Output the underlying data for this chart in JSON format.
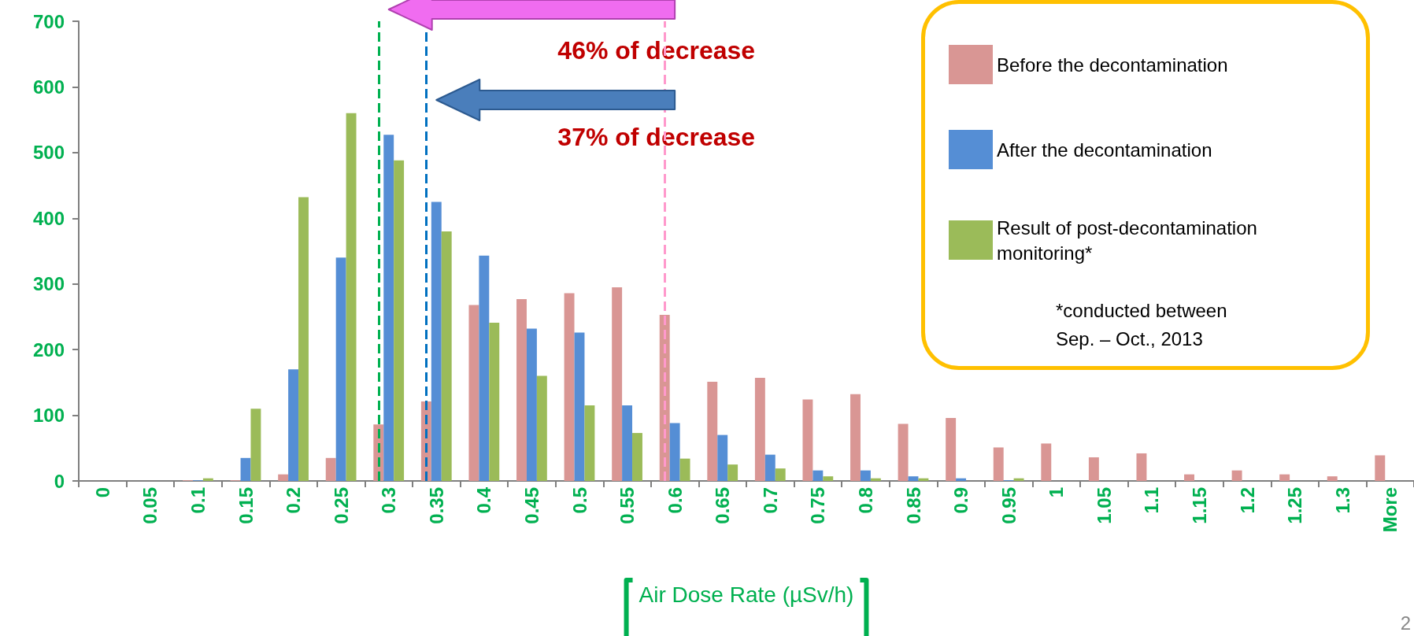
{
  "chart_data": {
    "type": "bar",
    "xlabel": "Air Dose Rate (µSv/h)",
    "categories": [
      "0",
      "0.05",
      "0.1",
      "0.15",
      "0.2",
      "0.25",
      "0.3",
      "0.35",
      "0.4",
      "0.45",
      "0.5",
      "0.55",
      "0.6",
      "0.65",
      "0.7",
      "0.75",
      "0.8",
      "0.85",
      "0.9",
      "0.95",
      "1",
      "1.05",
      "1.1",
      "1.15",
      "1.2",
      "1.25",
      "1.3",
      "More"
    ],
    "series": [
      {
        "name": "Before the decontamination",
        "color": "#d99694",
        "values": [
          0,
          0,
          1,
          1,
          10,
          35,
          86,
          121,
          268,
          277,
          286,
          295,
          253,
          151,
          157,
          124,
          132,
          87,
          96,
          51,
          57,
          36,
          42,
          10,
          16,
          10,
          7,
          39
        ]
      },
      {
        "name": "After the decontamination",
        "color": "#558ed5",
        "values": [
          0,
          0,
          1,
          35,
          170,
          340,
          527,
          425,
          343,
          232,
          226,
          115,
          88,
          70,
          40,
          16,
          16,
          7,
          4,
          1,
          0,
          0,
          0,
          0,
          0,
          0,
          0,
          0
        ]
      },
      {
        "name": "Result of post-decontamination monitoring*",
        "color": "#9bbb59",
        "values": [
          0,
          0,
          4,
          110,
          432,
          560,
          488,
          380,
          241,
          160,
          115,
          73,
          34,
          25,
          19,
          7,
          4,
          4,
          null,
          4,
          0,
          0,
          0,
          0,
          0,
          0,
          0,
          0
        ]
      }
    ],
    "ylim": [
      0,
      700
    ],
    "yticks": [
      0,
      100,
      200,
      300,
      400,
      500,
      600,
      700
    ],
    "ref_lines": [
      {
        "axis": "x",
        "value": "0.3",
        "color": "#00b050",
        "line_style": "dashed"
      },
      {
        "axis": "x",
        "value": "0.35",
        "color": "#0070c0",
        "line_style": "dashed"
      },
      {
        "axis": "x",
        "value": "0.6",
        "color": "#ff99cc",
        "line_style": "dashed"
      }
    ],
    "annotations": [
      "46% of decrease",
      "37% of decrease",
      "*conducted between Sep. – Oct., 2013",
      "2"
    ],
    "legend": "top right",
    "grid": false
  }
}
